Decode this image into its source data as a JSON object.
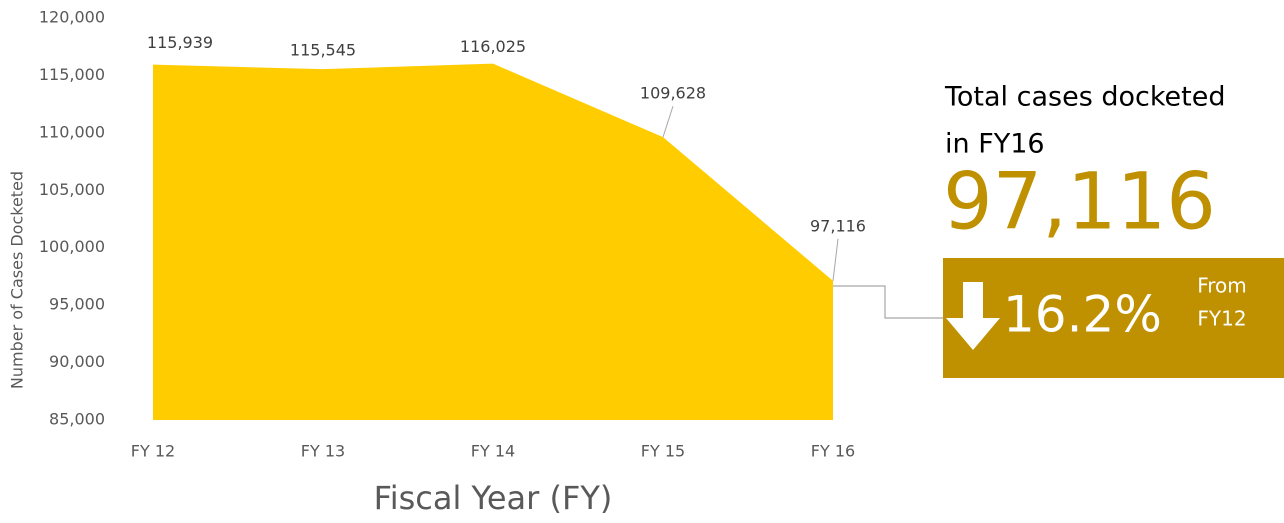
{
  "chart_data": {
    "type": "area",
    "categories": [
      "FY 12",
      "FY 13",
      "FY 14",
      "FY 15",
      "FY 16"
    ],
    "values": [
      115939,
      115545,
      116025,
      109628,
      97116
    ],
    "value_labels": [
      "115,939",
      "115,545",
      "116,025",
      "109,628",
      "97,116"
    ],
    "color": "#ffcc00",
    "ylim": [
      85000,
      120000
    ],
    "yticks": [
      {
        "value": 85000,
        "label": "85,000"
      },
      {
        "value": 90000,
        "label": "90,000"
      },
      {
        "value": 95000,
        "label": "95,000"
      },
      {
        "value": 100000,
        "label": "100,000"
      },
      {
        "value": 105000,
        "label": "105,000"
      },
      {
        "value": 110000,
        "label": "110,000"
      },
      {
        "value": 115000,
        "label": "115,000"
      },
      {
        "value": 120000,
        "label": "120,000"
      }
    ],
    "y_label": "Number of Cases Docketed",
    "x_label": "Fiscal Year (FY)",
    "grid": false,
    "annotation": {
      "heading": [
        "Total cases docketed",
        "in FY16"
      ],
      "highlight": "97,116",
      "change": "16.2%",
      "change_note": [
        "From",
        "FY12"
      ],
      "color": "#bf9000"
    }
  }
}
